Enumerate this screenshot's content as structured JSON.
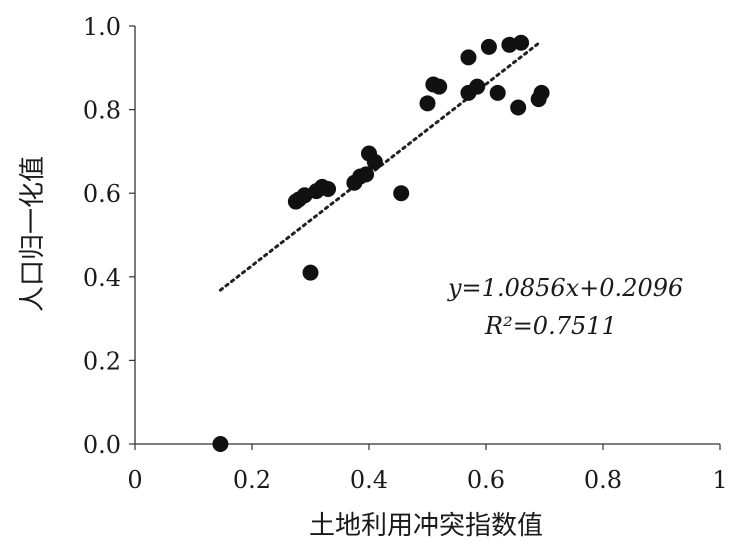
{
  "chart_data": {
    "type": "scatter",
    "xlabel": "土地利用冲突指数值",
    "ylabel": "人口归一化值",
    "xlim": [
      0,
      1
    ],
    "ylim": [
      0,
      1
    ],
    "xticks": [
      "0",
      "0.2",
      "0.4",
      "0.6",
      "0.8",
      "1"
    ],
    "yticks": [
      "0.0",
      "0.2",
      "0.4",
      "0.6",
      "0.8",
      "1.0"
    ],
    "grid": false,
    "points": [
      [
        0.146,
        0.0
      ],
      [
        0.3,
        0.41
      ],
      [
        0.275,
        0.58
      ],
      [
        0.28,
        0.585
      ],
      [
        0.29,
        0.595
      ],
      [
        0.31,
        0.605
      ],
      [
        0.32,
        0.615
      ],
      [
        0.33,
        0.61
      ],
      [
        0.375,
        0.625
      ],
      [
        0.385,
        0.64
      ],
      [
        0.395,
        0.645
      ],
      [
        0.4,
        0.695
      ],
      [
        0.41,
        0.675
      ],
      [
        0.455,
        0.6
      ],
      [
        0.5,
        0.815
      ],
      [
        0.51,
        0.86
      ],
      [
        0.52,
        0.855
      ],
      [
        0.57,
        0.925
      ],
      [
        0.57,
        0.84
      ],
      [
        0.585,
        0.855
      ],
      [
        0.605,
        0.95
      ],
      [
        0.62,
        0.84
      ],
      [
        0.64,
        0.955
      ],
      [
        0.655,
        0.805
      ],
      [
        0.66,
        0.96
      ],
      [
        0.69,
        0.825
      ],
      [
        0.695,
        0.84
      ]
    ],
    "trendline": {
      "slope": 1.0856,
      "intercept": 0.2096,
      "x_range": [
        0.146,
        0.69
      ],
      "style": "dotted"
    },
    "equation_text": "y=1.0856x+0.2096",
    "r2_text": "R²=0.7511",
    "colors": {
      "points": "#111111",
      "line": "#222222",
      "axis": "#333333"
    }
  }
}
